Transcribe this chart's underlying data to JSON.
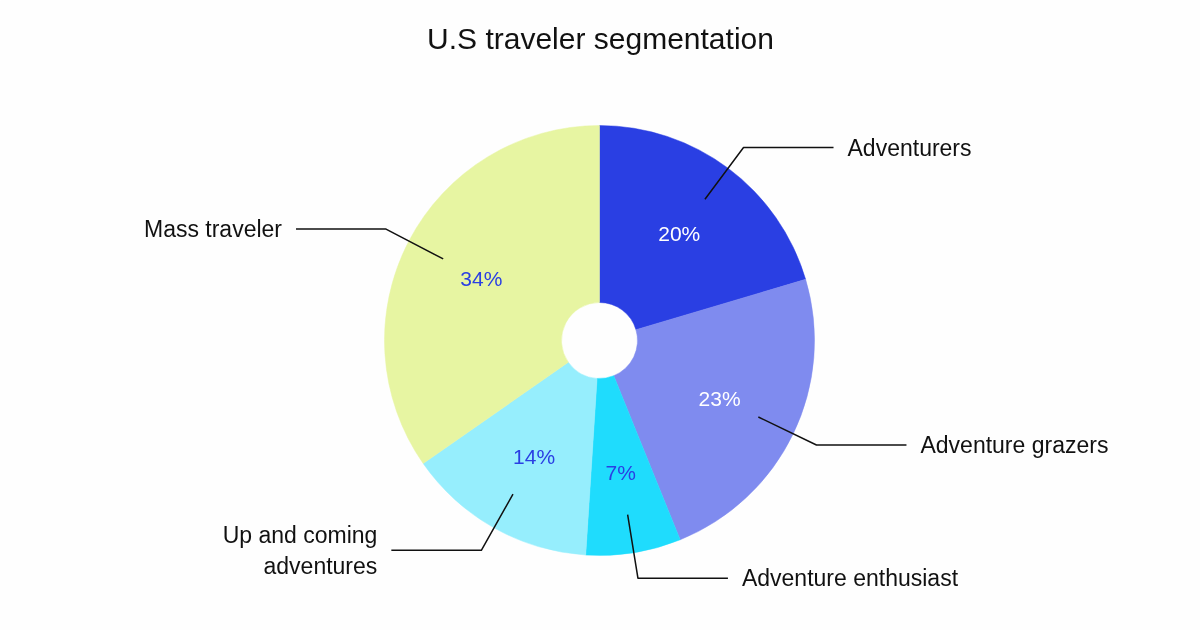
{
  "chart_data": {
    "type": "donut",
    "title": "U.S traveler segmentation",
    "categories": [
      "Adventurers",
      "Adventure grazers",
      "Adventure enthusiast",
      "Up and coming adventures",
      "Mass traveler"
    ],
    "values": [
      20,
      23,
      7,
      14,
      34
    ],
    "value_labels": [
      "20%",
      "23%",
      "7%",
      "14%",
      "34%"
    ],
    "colors": [
      "#2a3fe3",
      "#7f8bef",
      "#1fdcfd",
      "#96eefd",
      "#e7f5a2"
    ]
  }
}
